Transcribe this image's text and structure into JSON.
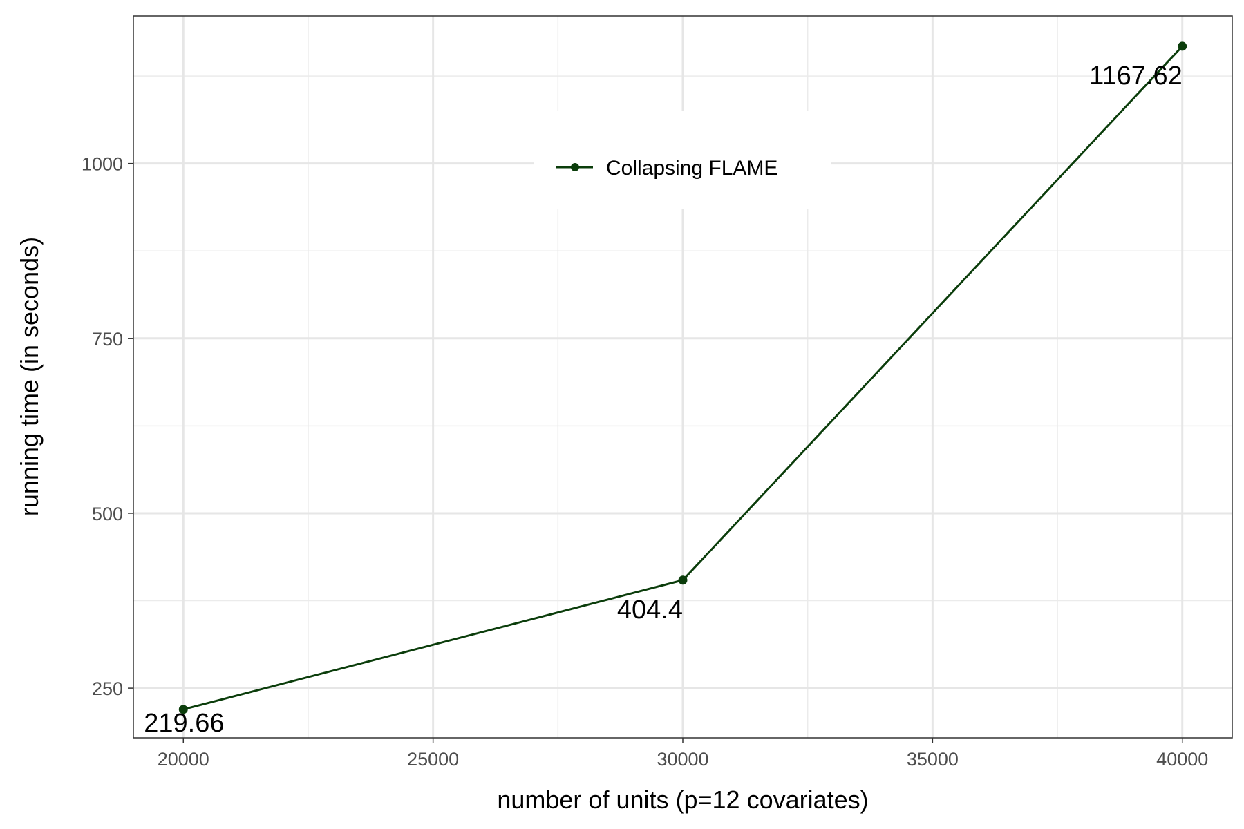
{
  "chart_data": {
    "type": "line",
    "title": "",
    "xlabel": "number of units (p=12 covariates)",
    "ylabel": "running time (in seconds)",
    "xlim": [
      19000,
      41000
    ],
    "ylim": [
      179,
      1211
    ],
    "x_ticks": [
      20000,
      25000,
      30000,
      35000,
      40000
    ],
    "x_tick_labels": [
      "20000",
      "25000",
      "30000",
      "35000",
      "40000"
    ],
    "y_ticks": [
      250,
      500,
      750,
      1000
    ],
    "y_tick_labels": [
      "250",
      "500",
      "750",
      "1000"
    ],
    "grid": true,
    "legend_position": "top-center",
    "series": [
      {
        "name": "Collapsing FLAME",
        "color": "#0b3d0b",
        "x": [
          20000,
          30000,
          40000
        ],
        "y": [
          219.66,
          404.4,
          1167.62
        ],
        "labels": [
          "219.66",
          "404.4",
          "1167.62"
        ]
      }
    ]
  }
}
